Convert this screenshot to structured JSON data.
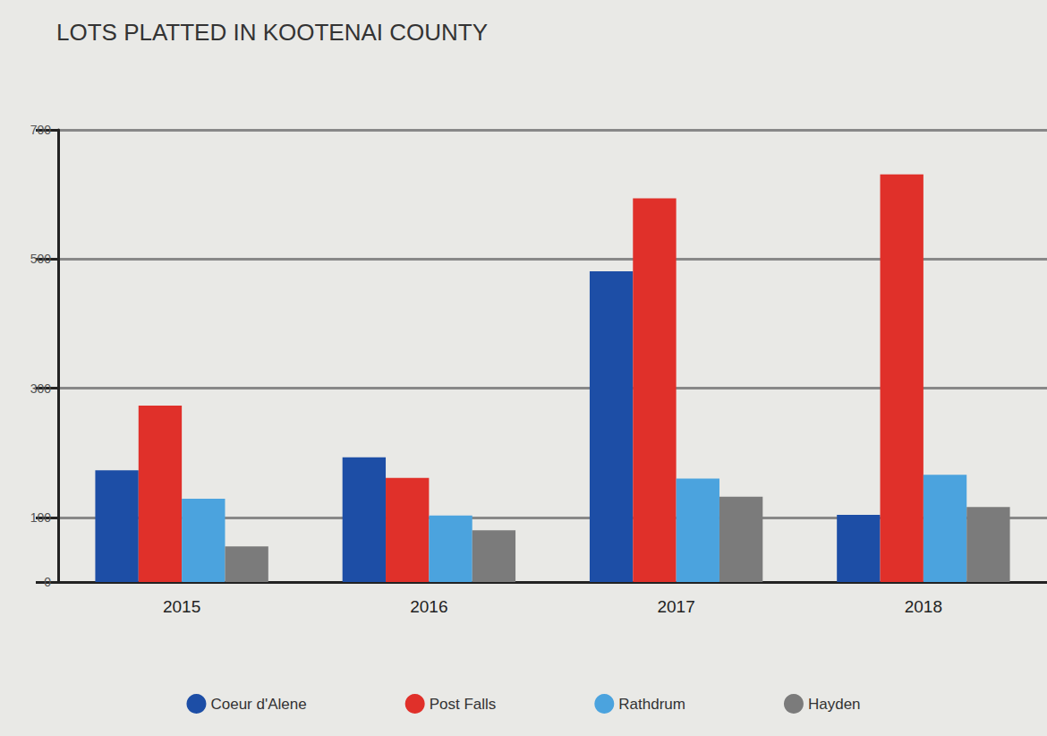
{
  "chart_data": {
    "type": "bar",
    "title": "LOTS PLATTED IN KOOTENAI COUNTY",
    "categories": [
      "2015",
      "2016",
      "2017",
      "2018"
    ],
    "series": [
      {
        "name": "Coeur d'Alene",
        "color": "#1d4ea6",
        "values": [
          173,
          193,
          481,
          104
        ]
      },
      {
        "name": "Post Falls",
        "color": "#e0302a",
        "values": [
          273,
          161,
          594,
          631
        ]
      },
      {
        "name": "Rathdrum",
        "color": "#4ba3de",
        "values": [
          129,
          103,
          160,
          166
        ]
      },
      {
        "name": "Hayden",
        "color": "#7b7b7b",
        "values": [
          55,
          80,
          132,
          116
        ]
      }
    ],
    "ylim": [
      0,
      700
    ],
    "yticks": [
      0,
      100,
      300,
      500,
      700
    ],
    "grid": true,
    "legend": "bottom"
  }
}
